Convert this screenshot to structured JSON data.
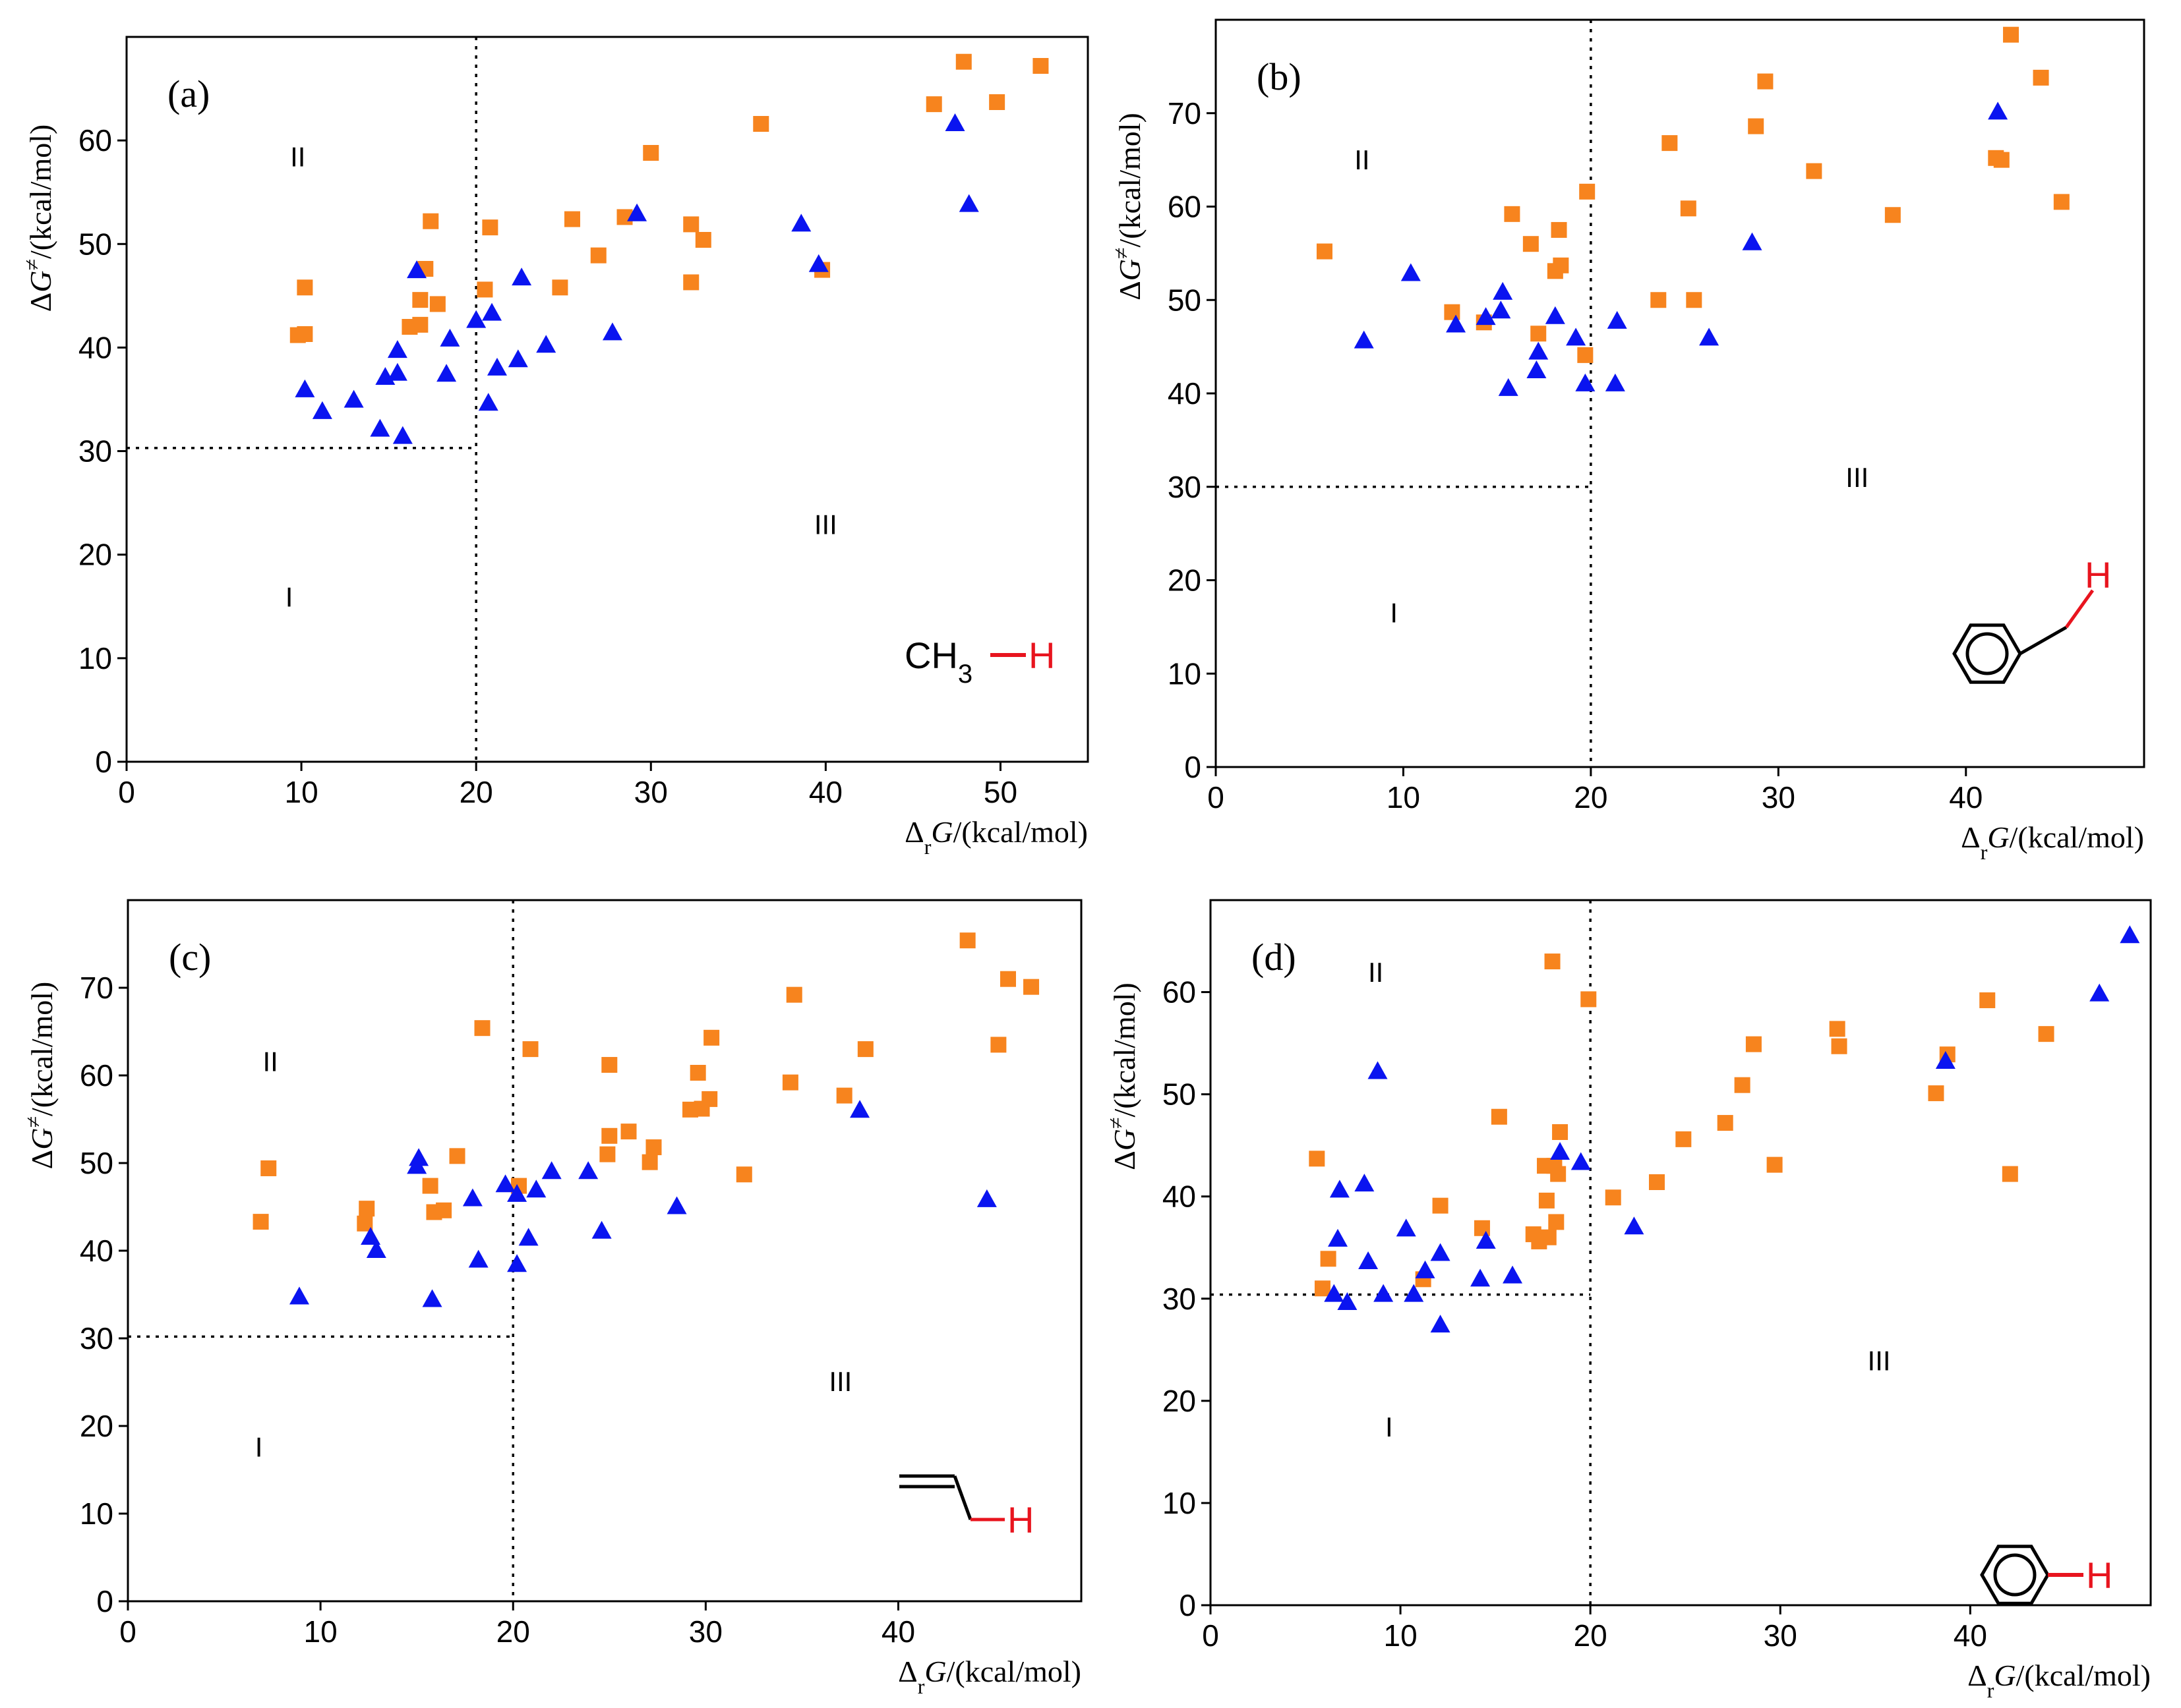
{
  "colors": {
    "group_a": "#f7841e",
    "group_b": "#0a14f0",
    "axis": "#000000",
    "bond_h": "#e8141e"
  },
  "chart_data": [
    {
      "type": "scatter",
      "panel_label": "(a)",
      "xlabel": {
        "prefix": "Δ",
        "sub": "r",
        "var": "G",
        "unit": "/(kcal/mol)"
      },
      "ylabel": {
        "prefix": "Δ",
        "var": "G",
        "sup": "≠",
        "unit": "/(kcal/mol)"
      },
      "xlim": [
        0,
        55
      ],
      "ylim": [
        0,
        70
      ],
      "xticks": [
        0,
        10,
        20,
        30,
        40,
        50
      ],
      "yticks": [
        0,
        10,
        20,
        30,
        40,
        50,
        60
      ],
      "threshold_x": 20,
      "threshold_y": 30.3,
      "regions": [
        {
          "label": "I",
          "x": 9.3,
          "y": 15
        },
        {
          "label": "II",
          "x": 9.8,
          "y": 57.5
        },
        {
          "label": "III",
          "x": 40.0,
          "y": 22
        }
      ],
      "molecule": {
        "id": "methane",
        "text": "CH",
        "sub": "3",
        "h": "H"
      },
      "series": [
        {
          "name": "orange-squares",
          "marker": "square",
          "color": "#f7841e",
          "points": [
            [
              9.8,
              41.2
            ],
            [
              10.2,
              41.3
            ],
            [
              10.2,
              45.8
            ],
            [
              16.2,
              42.0
            ],
            [
              16.8,
              42.2
            ],
            [
              16.8,
              44.6
            ],
            [
              17.1,
              47.6
            ],
            [
              17.4,
              52.2
            ],
            [
              17.8,
              44.2
            ],
            [
              20.5,
              45.6
            ],
            [
              20.8,
              51.6
            ],
            [
              25.5,
              52.4
            ],
            [
              24.8,
              45.8
            ],
            [
              27.0,
              48.9
            ],
            [
              28.5,
              52.6
            ],
            [
              30.0,
              58.8
            ],
            [
              32.3,
              51.9
            ],
            [
              33.0,
              50.4
            ],
            [
              32.3,
              46.3
            ],
            [
              36.3,
              61.6
            ],
            [
              39.8,
              47.5
            ],
            [
              46.2,
              63.5
            ],
            [
              47.9,
              67.6
            ],
            [
              49.8,
              63.7
            ],
            [
              52.3,
              67.2
            ]
          ]
        },
        {
          "name": "blue-triangles",
          "marker": "triangle",
          "color": "#0a14f0",
          "points": [
            [
              10.2,
              35.9
            ],
            [
              11.2,
              33.8
            ],
            [
              13.0,
              34.9
            ],
            [
              14.5,
              32.1
            ],
            [
              14.8,
              37.1
            ],
            [
              15.5,
              37.5
            ],
            [
              15.5,
              39.7
            ],
            [
              15.8,
              31.4
            ],
            [
              16.6,
              47.4
            ],
            [
              18.3,
              37.4
            ],
            [
              18.5,
              40.8
            ],
            [
              20.0,
              42.6
            ],
            [
              20.7,
              34.6
            ],
            [
              20.9,
              43.3
            ],
            [
              21.2,
              38.0
            ],
            [
              22.4,
              38.8
            ],
            [
              22.6,
              46.7
            ],
            [
              24.0,
              40.2
            ],
            [
              27.8,
              41.4
            ],
            [
              29.2,
              52.9
            ],
            [
              38.6,
              51.9
            ],
            [
              39.6,
              48.0
            ],
            [
              47.4,
              61.6
            ],
            [
              48.2,
              53.8
            ]
          ]
        }
      ]
    },
    {
      "type": "scatter",
      "panel_label": "(b)",
      "xlabel": {
        "prefix": "Δ",
        "sub": "r",
        "var": "G",
        "unit": "/(kcal/mol)"
      },
      "ylabel": {
        "prefix": "Δ",
        "var": "G",
        "sup": "≠",
        "unit": "/(kcal/mol)"
      },
      "xlim": [
        0,
        49.5
      ],
      "ylim": [
        0,
        80
      ],
      "xticks": [
        0,
        10,
        20,
        30,
        40
      ],
      "yticks": [
        0,
        10,
        20,
        30,
        40,
        50,
        60,
        70
      ],
      "threshold_x": 20,
      "threshold_y": 30,
      "regions": [
        {
          "label": "I",
          "x": 9.5,
          "y": 15.5
        },
        {
          "label": "II",
          "x": 7.8,
          "y": 64
        },
        {
          "label": "III",
          "x": 34.2,
          "y": 30
        }
      ],
      "molecule": {
        "id": "toluene",
        "h": "H"
      },
      "series": [
        {
          "name": "orange-squares",
          "marker": "square",
          "color": "#f7841e",
          "points": [
            [
              5.8,
              55.2
            ],
            [
              12.6,
              48.7
            ],
            [
              14.3,
              47.6
            ],
            [
              15.8,
              59.2
            ],
            [
              16.8,
              56.0
            ],
            [
              17.2,
              46.4
            ],
            [
              18.1,
              53.1
            ],
            [
              18.3,
              57.5
            ],
            [
              18.4,
              53.7
            ],
            [
              19.7,
              44.1
            ],
            [
              19.8,
              61.6
            ],
            [
              23.6,
              50.0
            ],
            [
              24.2,
              66.8
            ],
            [
              25.2,
              59.8
            ],
            [
              25.5,
              50.0
            ],
            [
              28.8,
              68.6
            ],
            [
              29.3,
              73.4
            ],
            [
              31.9,
              63.8
            ],
            [
              36.1,
              59.1
            ],
            [
              41.6,
              65.2
            ],
            [
              41.9,
              65.0
            ],
            [
              42.4,
              78.4
            ],
            [
              44.0,
              73.8
            ],
            [
              45.1,
              60.5
            ]
          ]
        },
        {
          "name": "blue-triangles",
          "marker": "triangle",
          "color": "#0a14f0",
          "points": [
            [
              7.9,
              45.6
            ],
            [
              10.4,
              52.8
            ],
            [
              12.8,
              47.3
            ],
            [
              14.4,
              48.1
            ],
            [
              15.2,
              48.8
            ],
            [
              15.3,
              50.8
            ],
            [
              15.6,
              40.5
            ],
            [
              17.1,
              42.4
            ],
            [
              17.2,
              44.4
            ],
            [
              18.1,
              48.2
            ],
            [
              19.2,
              45.9
            ],
            [
              19.7,
              41.0
            ],
            [
              21.3,
              41.0
            ],
            [
              21.4,
              47.7
            ],
            [
              26.3,
              45.9
            ],
            [
              28.6,
              56.1
            ],
            [
              41.7,
              70.1
            ]
          ]
        }
      ]
    },
    {
      "type": "scatter",
      "panel_label": "(c)",
      "xlabel": {
        "prefix": "Δ",
        "sub": "r",
        "var": "G",
        "unit": "/(kcal/mol)"
      },
      "ylabel": {
        "prefix": "Δ",
        "var": "G",
        "sup": "≠",
        "unit": "/(kcal/mol)"
      },
      "xlim": [
        0,
        49.5
      ],
      "ylim": [
        0,
        80
      ],
      "xticks": [
        0,
        10,
        20,
        30,
        40
      ],
      "yticks": [
        0,
        10,
        20,
        30,
        40,
        50,
        60,
        70
      ],
      "threshold_x": 20,
      "threshold_y": 30.2,
      "regions": [
        {
          "label": "I",
          "x": 6.8,
          "y": 16.5
        },
        {
          "label": "II",
          "x": 7.4,
          "y": 60.5
        },
        {
          "label": "III",
          "x": 37.0,
          "y": 24
        }
      ],
      "molecule": {
        "id": "propene",
        "h": "H"
      },
      "series": [
        {
          "name": "orange-squares",
          "marker": "square",
          "color": "#f7841e",
          "points": [
            [
              6.9,
              43.3
            ],
            [
              7.3,
              49.4
            ],
            [
              12.3,
              43.1
            ],
            [
              12.4,
              44.8
            ],
            [
              15.7,
              47.4
            ],
            [
              15.9,
              44.4
            ],
            [
              16.4,
              44.6
            ],
            [
              17.1,
              50.8
            ],
            [
              18.4,
              65.4
            ],
            [
              20.3,
              47.4
            ],
            [
              20.9,
              63.0
            ],
            [
              24.9,
              51.0
            ],
            [
              25.0,
              53.1
            ],
            [
              25.0,
              61.2
            ],
            [
              26.0,
              53.6
            ],
            [
              27.1,
              50.1
            ],
            [
              27.3,
              51.8
            ],
            [
              29.2,
              56.1
            ],
            [
              29.6,
              60.3
            ],
            [
              29.8,
              56.2
            ],
            [
              30.2,
              57.3
            ],
            [
              30.3,
              64.3
            ],
            [
              32.0,
              48.7
            ],
            [
              34.4,
              59.2
            ],
            [
              34.6,
              69.2
            ],
            [
              37.2,
              57.7
            ],
            [
              38.3,
              63.0
            ],
            [
              43.6,
              75.4
            ],
            [
              45.2,
              63.5
            ],
            [
              45.7,
              71.0
            ],
            [
              46.9,
              70.1
            ]
          ]
        },
        {
          "name": "blue-triangles",
          "marker": "triangle",
          "color": "#0a14f0",
          "points": [
            [
              8.9,
              34.7
            ],
            [
              12.6,
              41.5
            ],
            [
              12.9,
              40.0
            ],
            [
              15.0,
              49.6
            ],
            [
              15.1,
              50.5
            ],
            [
              15.8,
              34.4
            ],
            [
              17.9,
              45.9
            ],
            [
              18.2,
              38.9
            ],
            [
              19.6,
              47.5
            ],
            [
              20.2,
              46.4
            ],
            [
              20.2,
              38.4
            ],
            [
              20.8,
              41.4
            ],
            [
              21.2,
              46.9
            ],
            [
              22.0,
              49.0
            ],
            [
              23.9,
              49.0
            ],
            [
              24.6,
              42.2
            ],
            [
              28.5,
              45.0
            ],
            [
              38.0,
              56.0
            ],
            [
              44.6,
              45.8
            ]
          ]
        }
      ]
    },
    {
      "type": "scatter",
      "panel_label": "(d)",
      "xlabel": {
        "prefix": "Δ",
        "sub": "r",
        "var": "G",
        "unit": "/(kcal/mol)"
      },
      "ylabel": {
        "prefix": "Δ",
        "var": "G",
        "sup": "≠",
        "unit": "/(kcal/mol)"
      },
      "xlim": [
        0,
        49.5
      ],
      "ylim": [
        0,
        69
      ],
      "xticks": [
        0,
        10,
        20,
        30,
        40
      ],
      "yticks": [
        0,
        10,
        20,
        30,
        40,
        50,
        60
      ],
      "threshold_x": 20,
      "threshold_y": 30.4,
      "regions": [
        {
          "label": "I",
          "x": 9.4,
          "y": 16.5
        },
        {
          "label": "II",
          "x": 8.7,
          "y": 61
        },
        {
          "label": "III",
          "x": 35.2,
          "y": 23
        }
      ],
      "molecule": {
        "id": "benzene",
        "h": "H"
      },
      "series": [
        {
          "name": "orange-squares",
          "marker": "square",
          "color": "#f7841e",
          "points": [
            [
              5.6,
              43.7
            ],
            [
              5.9,
              31.0
            ],
            [
              6.2,
              33.9
            ],
            [
              11.2,
              31.9
            ],
            [
              12.1,
              39.1
            ],
            [
              14.3,
              36.9
            ],
            [
              15.2,
              47.8
            ],
            [
              17.0,
              36.3
            ],
            [
              17.3,
              35.6
            ],
            [
              17.6,
              43.0
            ],
            [
              17.7,
              39.6
            ],
            [
              17.8,
              36.0
            ],
            [
              18.0,
              63.0
            ],
            [
              18.1,
              43.0
            ],
            [
              18.2,
              37.5
            ],
            [
              18.3,
              42.2
            ],
            [
              18.4,
              46.3
            ],
            [
              19.9,
              59.3
            ],
            [
              21.2,
              39.9
            ],
            [
              23.5,
              41.4
            ],
            [
              24.9,
              45.6
            ],
            [
              27.1,
              47.2
            ],
            [
              28.0,
              50.9
            ],
            [
              28.6,
              54.9
            ],
            [
              29.7,
              43.1
            ],
            [
              33.0,
              56.4
            ],
            [
              33.1,
              54.7
            ],
            [
              38.2,
              50.1
            ],
            [
              38.8,
              53.9
            ],
            [
              40.9,
              59.2
            ],
            [
              42.1,
              42.2
            ],
            [
              44.0,
              55.9
            ]
          ]
        },
        {
          "name": "blue-triangles",
          "marker": "triangle",
          "color": "#0a14f0",
          "points": [
            [
              6.5,
              30.4
            ],
            [
              6.7,
              35.8
            ],
            [
              6.8,
              40.6
            ],
            [
              7.2,
              29.6
            ],
            [
              8.1,
              41.2
            ],
            [
              8.3,
              33.6
            ],
            [
              8.8,
              52.2
            ],
            [
              9.1,
              30.4
            ],
            [
              10.3,
              36.8
            ],
            [
              10.7,
              30.4
            ],
            [
              11.3,
              32.7
            ],
            [
              12.1,
              34.4
            ],
            [
              12.1,
              27.4
            ],
            [
              14.2,
              31.9
            ],
            [
              14.5,
              35.6
            ],
            [
              15.9,
              32.2
            ],
            [
              18.4,
              44.3
            ],
            [
              19.5,
              43.3
            ],
            [
              22.3,
              37.0
            ],
            [
              38.7,
              53.2
            ],
            [
              46.8,
              59.8
            ],
            [
              48.4,
              65.5
            ]
          ]
        }
      ]
    }
  ]
}
